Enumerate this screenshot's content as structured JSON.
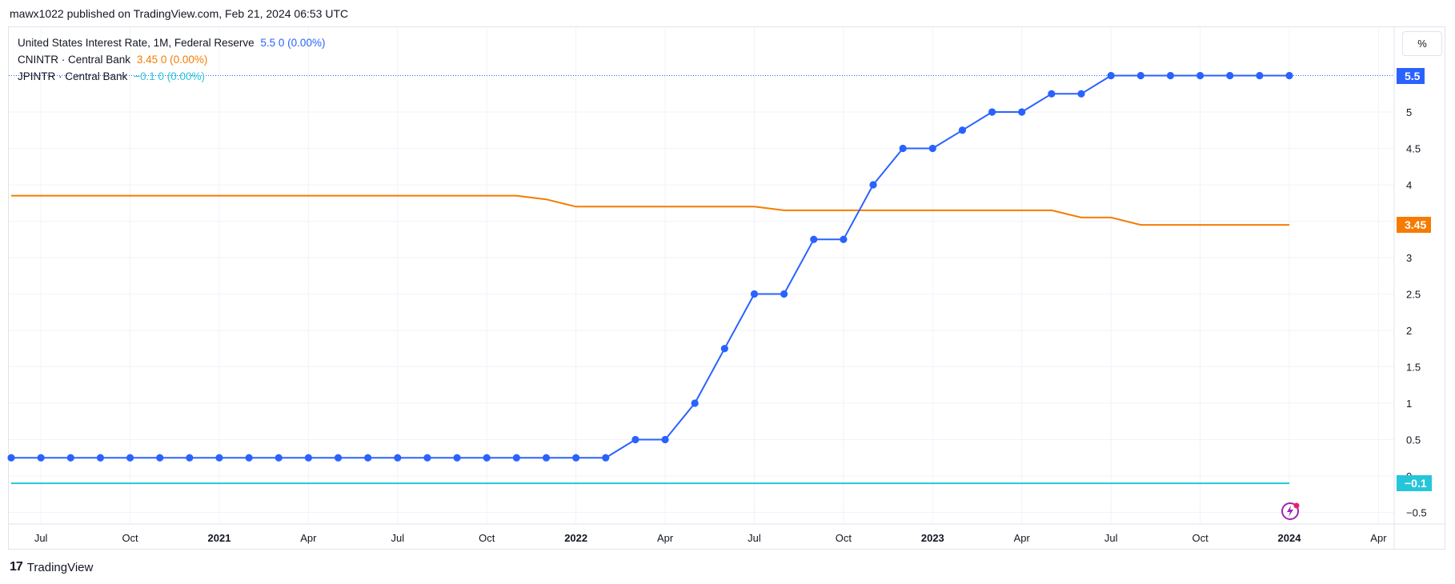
{
  "header": {
    "text": "mawx1022 published on TradingView.com, Feb 21, 2024 06:53 UTC"
  },
  "legend": [
    {
      "label": "United States Interest Rate, 1M, Federal Reserve",
      "value": "5.5  0 (0.00%)",
      "color": "#2962ff"
    },
    {
      "label": "CNINTR · Central Bank",
      "value": "3.45  0 (0.00%)",
      "color": "#f57c00"
    },
    {
      "label": "JPINTR · Central Bank",
      "value": "−0.1  0 (0.00%)",
      "color": "#26c6da"
    }
  ],
  "unit_button": {
    "label": "%"
  },
  "price_tags": [
    {
      "label": "5.5",
      "value": 5.5,
      "color": "#2962ff"
    },
    {
      "label": "3.45",
      "value": 3.45,
      "color": "#f57c00"
    },
    {
      "label": "−0.1",
      "value": -0.1,
      "color": "#26c6da"
    }
  ],
  "footer": {
    "brand": "TradingView",
    "logo_mark": "17"
  },
  "chart_data": {
    "type": "line",
    "x_axis_ticks": [
      {
        "label": "Jul",
        "date": "2020-07",
        "bold": false
      },
      {
        "label": "Oct",
        "date": "2020-10",
        "bold": false
      },
      {
        "label": "2021",
        "date": "2021-01",
        "bold": true
      },
      {
        "label": "Apr",
        "date": "2021-04",
        "bold": false
      },
      {
        "label": "Jul",
        "date": "2021-07",
        "bold": false
      },
      {
        "label": "Oct",
        "date": "2021-10",
        "bold": false
      },
      {
        "label": "2022",
        "date": "2022-01",
        "bold": true
      },
      {
        "label": "Apr",
        "date": "2022-04",
        "bold": false
      },
      {
        "label": "Jul",
        "date": "2022-07",
        "bold": false
      },
      {
        "label": "Oct",
        "date": "2022-10",
        "bold": false
      },
      {
        "label": "2023",
        "date": "2023-01",
        "bold": true
      },
      {
        "label": "Apr",
        "date": "2023-04",
        "bold": false
      },
      {
        "label": "Jul",
        "date": "2023-07",
        "bold": false
      },
      {
        "label": "Oct",
        "date": "2023-10",
        "bold": false
      },
      {
        "label": "2024",
        "date": "2024-01",
        "bold": true
      },
      {
        "label": "Apr",
        "date": "2024-04",
        "bold": false
      }
    ],
    "y_axis_ticks": [
      {
        "label": "5",
        "value": 5
      },
      {
        "label": "4.5",
        "value": 4.5
      },
      {
        "label": "4",
        "value": 4
      },
      {
        "label": "3.5",
        "value": 3.5
      },
      {
        "label": "3",
        "value": 3
      },
      {
        "label": "2.5",
        "value": 2.5
      },
      {
        "label": "2",
        "value": 2
      },
      {
        "label": "1.5",
        "value": 1.5
      },
      {
        "label": "1",
        "value": 1
      },
      {
        "label": "0.5",
        "value": 0.5
      },
      {
        "label": "0",
        "value": 0
      },
      {
        "label": "−0.5",
        "value": -0.5
      }
    ],
    "ylim": [
      -0.55,
      5.6
    ],
    "xlim": [
      "2020-06",
      "2024-04"
    ],
    "grid": true,
    "legend_position": "top-left",
    "series": [
      {
        "name": "United States Interest Rate, 1M, Federal Reserve",
        "color": "#2962ff",
        "markers": true,
        "x": [
          "2020-06",
          "2020-07",
          "2020-08",
          "2020-09",
          "2020-10",
          "2020-11",
          "2020-12",
          "2021-01",
          "2021-02",
          "2021-03",
          "2021-04",
          "2021-05",
          "2021-06",
          "2021-07",
          "2021-08",
          "2021-09",
          "2021-10",
          "2021-11",
          "2021-12",
          "2022-01",
          "2022-02",
          "2022-03",
          "2022-04",
          "2022-05",
          "2022-06",
          "2022-07",
          "2022-08",
          "2022-09",
          "2022-10",
          "2022-11",
          "2022-12",
          "2023-01",
          "2023-02",
          "2023-03",
          "2023-04",
          "2023-05",
          "2023-06",
          "2023-07",
          "2023-08",
          "2023-09",
          "2023-10",
          "2023-11",
          "2023-12",
          "2024-01"
        ],
        "values": [
          0.25,
          0.25,
          0.25,
          0.25,
          0.25,
          0.25,
          0.25,
          0.25,
          0.25,
          0.25,
          0.25,
          0.25,
          0.25,
          0.25,
          0.25,
          0.25,
          0.25,
          0.25,
          0.25,
          0.25,
          0.25,
          0.5,
          0.5,
          1.0,
          1.75,
          2.5,
          2.5,
          3.25,
          3.25,
          4.0,
          4.5,
          4.5,
          4.75,
          5.0,
          5.0,
          5.25,
          5.25,
          5.5,
          5.5,
          5.5,
          5.5,
          5.5,
          5.5,
          5.5
        ]
      },
      {
        "name": "CNINTR · Central Bank",
        "color": "#f57c00",
        "markers": false,
        "x": [
          "2020-06",
          "2021-11",
          "2021-12",
          "2022-01",
          "2022-07",
          "2022-08",
          "2023-05",
          "2023-06",
          "2023-07",
          "2023-08",
          "2024-01"
        ],
        "values": [
          3.85,
          3.85,
          3.8,
          3.7,
          3.7,
          3.65,
          3.65,
          3.55,
          3.55,
          3.45,
          3.45
        ]
      },
      {
        "name": "JPINTR · Central Bank",
        "color": "#26c6da",
        "markers": false,
        "x": [
          "2020-06",
          "2024-01"
        ],
        "values": [
          -0.1,
          -0.1
        ]
      }
    ]
  }
}
